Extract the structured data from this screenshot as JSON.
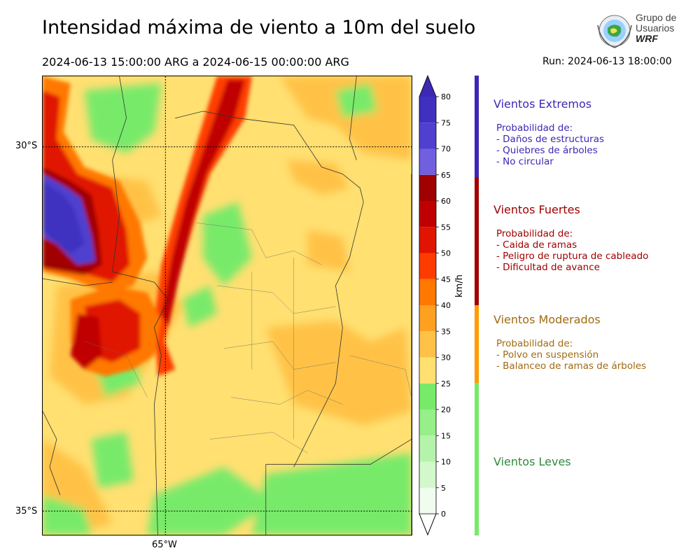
{
  "header": {
    "title": "Intensidad máxima de viento a 10m del suelo",
    "period": "2024-06-13 15:00:00 ARG  a  2024-06-15 00:00:00 ARG",
    "run": "Run: 2024-06-13 18:00:00"
  },
  "logo": {
    "line1": "Grupo de",
    "line2": "Usuarios",
    "line3": "WRF"
  },
  "map": {
    "lat_labels": [
      "30°S",
      "35°S"
    ],
    "lon_labels": [
      "65°W"
    ]
  },
  "colorbar": {
    "unit": "km/h",
    "ticks": [
      "0",
      "5",
      "10",
      "15",
      "20",
      "25",
      "30",
      "35",
      "40",
      "45",
      "50",
      "55",
      "60",
      "65",
      "70",
      "75",
      "80"
    ],
    "colors": [
      "#f0fcee",
      "#d2f8cc",
      "#b4f4aa",
      "#96ef88",
      "#78ea6a",
      "#ffe071",
      "#ffc247",
      "#ffa020",
      "#ff7800",
      "#ff3c00",
      "#e01400",
      "#c00000",
      "#a00000",
      "#7060e0",
      "#5040d0",
      "#4030c0"
    ],
    "under_color": "#ffffff",
    "over_color": "#3c28b4"
  },
  "categories": [
    {
      "title": "Vientos Extremos",
      "color": "#3c28b4",
      "bar_color": "#3c28b4",
      "lines": [
        "Probabilidad de:",
        "- Daños de estructuras",
        "- Quiebres de árboles",
        "- No circular"
      ]
    },
    {
      "title": "Vientos Fuertes",
      "color": "#a00000",
      "bar_color": "#a00000",
      "lines": [
        "Probabilidad de:",
        "- Caida de ramas",
        "- Peligro de ruptura de cableado",
        "- Dificultad de avance"
      ]
    },
    {
      "title": "Vientos Moderados",
      "color": "#a06a10",
      "bar_color": "#ff9a00",
      "lines": [
        "Probabilidad de:",
        "- Polvo en suspensión",
        "- Balanceo de ramas de árboles"
      ]
    },
    {
      "title": "Vientos Leves",
      "color": "#2e8b3a",
      "bar_color": "#78ea6a",
      "lines": []
    }
  ]
}
